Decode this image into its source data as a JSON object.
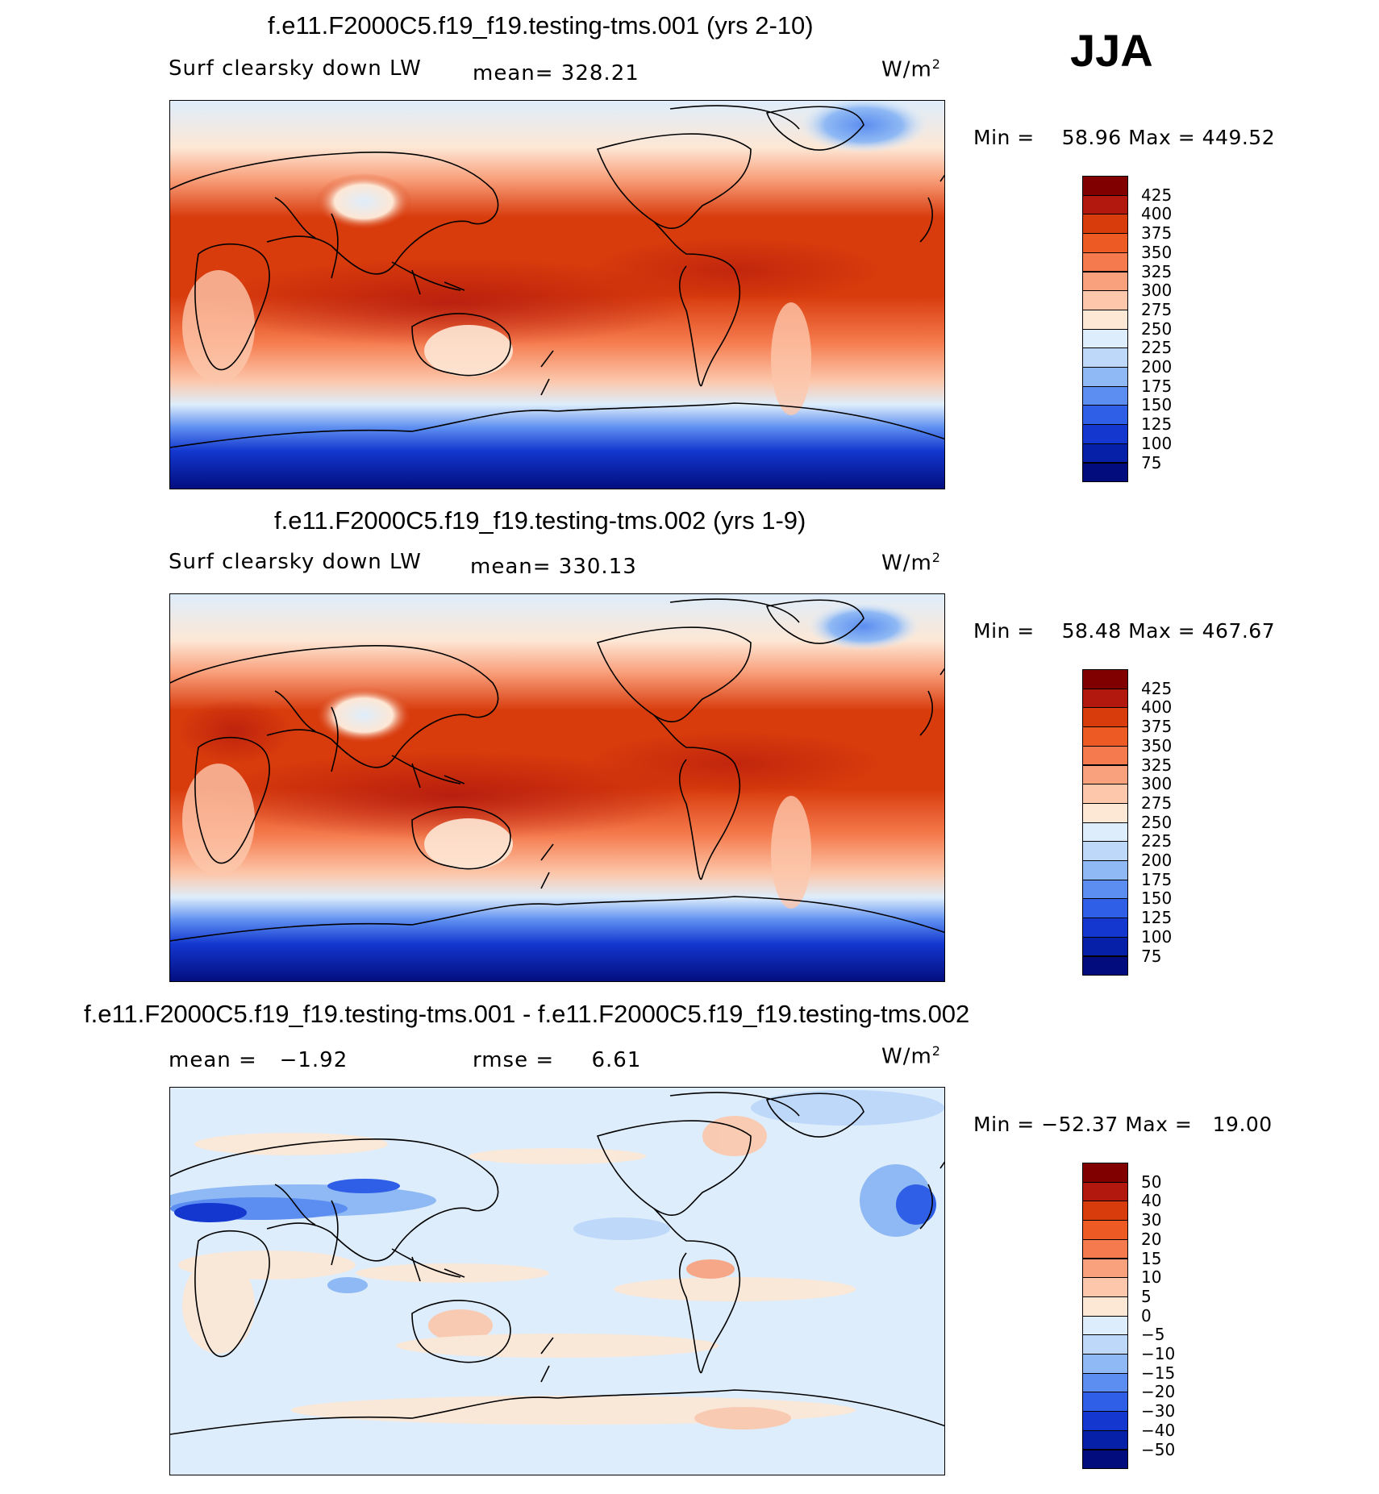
{
  "season": "JJA",
  "panels": [
    {
      "title": "f.e11.F2000C5.f19_f19.testing-tms.001 (yrs 2-10)",
      "variable": "Surf clearsky down LW",
      "stat_label": "mean=",
      "stat_value": "328.21",
      "units": "W/m",
      "units_sup": "2",
      "min_label": "Min =",
      "min_value": "58.96",
      "max_label": "Max =",
      "max_value": "449.52",
      "levels": [
        "425",
        "400",
        "375",
        "350",
        "325",
        "300",
        "275",
        "250",
        "225",
        "200",
        "175",
        "150",
        "125",
        "100",
        "75"
      ],
      "colors": [
        "#800000",
        "#b2180e",
        "#d83b0c",
        "#ee5a24",
        "#f57b4e",
        "#f9a07c",
        "#fcc7ab",
        "#fde7d5",
        "#deedfb",
        "#bed8fa",
        "#8fb9f4",
        "#5c8df0",
        "#2f5fe6",
        "#1337cf",
        "#0621a8",
        "#020c7c"
      ]
    },
    {
      "title": "f.e11.F2000C5.f19_f19.testing-tms.002 (yrs 1-9)",
      "variable": "Surf clearsky down LW",
      "stat_label": "mean=",
      "stat_value": "330.13",
      "units": "W/m",
      "units_sup": "2",
      "min_label": "Min =",
      "min_value": "58.48",
      "max_label": "Max =",
      "max_value": "467.67",
      "levels": [
        "425",
        "400",
        "375",
        "350",
        "325",
        "300",
        "275",
        "250",
        "225",
        "200",
        "175",
        "150",
        "125",
        "100",
        "75"
      ],
      "colors": [
        "#800000",
        "#b2180e",
        "#d83b0c",
        "#ee5a24",
        "#f57b4e",
        "#f9a07c",
        "#fcc7ab",
        "#fde7d5",
        "#deedfb",
        "#bed8fa",
        "#8fb9f4",
        "#5c8df0",
        "#2f5fe6",
        "#1337cf",
        "#0621a8",
        "#020c7c"
      ]
    },
    {
      "title": "f.e11.F2000C5.f19_f19.testing-tms.001 - f.e11.F2000C5.f19_f19.testing-tms.002",
      "mean_label": "mean =",
      "mean_value": "−1.92",
      "rmse_label": "rmse =",
      "rmse_value": "6.61",
      "units": "W/m",
      "units_sup": "2",
      "min_label": "Min =",
      "min_value": "−52.37",
      "max_label": "Max =",
      "max_value": "19.00",
      "levels": [
        "50",
        "40",
        "30",
        "20",
        "15",
        "10",
        "5",
        "0",
        "−5",
        "−10",
        "−15",
        "−20",
        "−30",
        "−40",
        "−50"
      ],
      "colors": [
        "#800000",
        "#b2180e",
        "#d83b0c",
        "#ee5a24",
        "#f57b4e",
        "#f9a07c",
        "#fcc7ab",
        "#fde7d5",
        "#deedfb",
        "#bed8fa",
        "#8fb9f4",
        "#5c8df0",
        "#2f5fe6",
        "#1337cf",
        "#0621a8",
        "#020c7c"
      ]
    }
  ]
}
